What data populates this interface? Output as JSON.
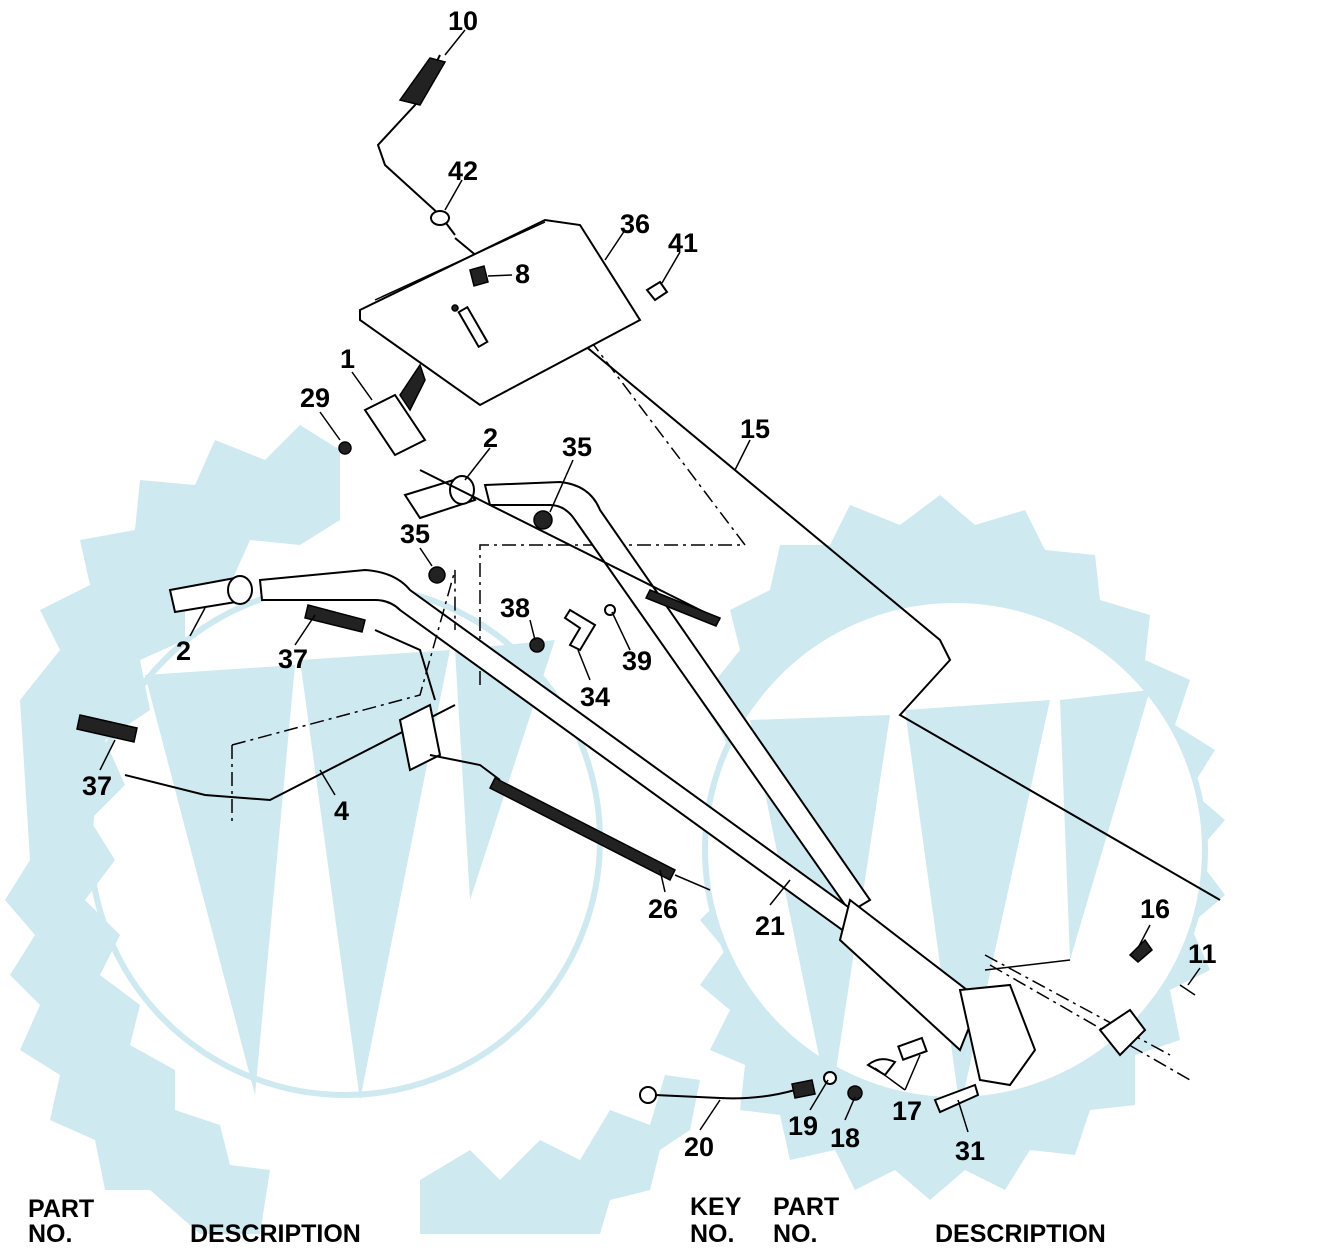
{
  "diagram": {
    "callouts": [
      {
        "id": "c10",
        "label": "10"
      },
      {
        "id": "c42",
        "label": "42"
      },
      {
        "id": "c36",
        "label": "36"
      },
      {
        "id": "c41",
        "label": "41"
      },
      {
        "id": "c8",
        "label": "8"
      },
      {
        "id": "c1",
        "label": "1"
      },
      {
        "id": "c29",
        "label": "29"
      },
      {
        "id": "c2a",
        "label": "2"
      },
      {
        "id": "c35a",
        "label": "35"
      },
      {
        "id": "c15",
        "label": "15"
      },
      {
        "id": "c35b",
        "label": "35"
      },
      {
        "id": "c2b",
        "label": "2"
      },
      {
        "id": "c37a",
        "label": "37"
      },
      {
        "id": "c38",
        "label": "38"
      },
      {
        "id": "c39",
        "label": "39"
      },
      {
        "id": "c34",
        "label": "34"
      },
      {
        "id": "c37b",
        "label": "37"
      },
      {
        "id": "c4",
        "label": "4"
      },
      {
        "id": "c26",
        "label": "26"
      },
      {
        "id": "c21",
        "label": "21"
      },
      {
        "id": "c16",
        "label": "16"
      },
      {
        "id": "c11",
        "label": "11"
      },
      {
        "id": "c20",
        "label": "20"
      },
      {
        "id": "c19",
        "label": "19"
      },
      {
        "id": "c18",
        "label": "18"
      },
      {
        "id": "c17",
        "label": "17"
      },
      {
        "id": "c31",
        "label": "31"
      }
    ]
  },
  "parts_table": {
    "left_headers": {
      "part": "PART",
      "no": "NO.",
      "description": "DESCRIPTION"
    },
    "right_headers": {
      "key": "KEY",
      "key_no": "NO.",
      "part": "PART",
      "part_no": "NO.",
      "description": "DESCRIPTION"
    }
  }
}
